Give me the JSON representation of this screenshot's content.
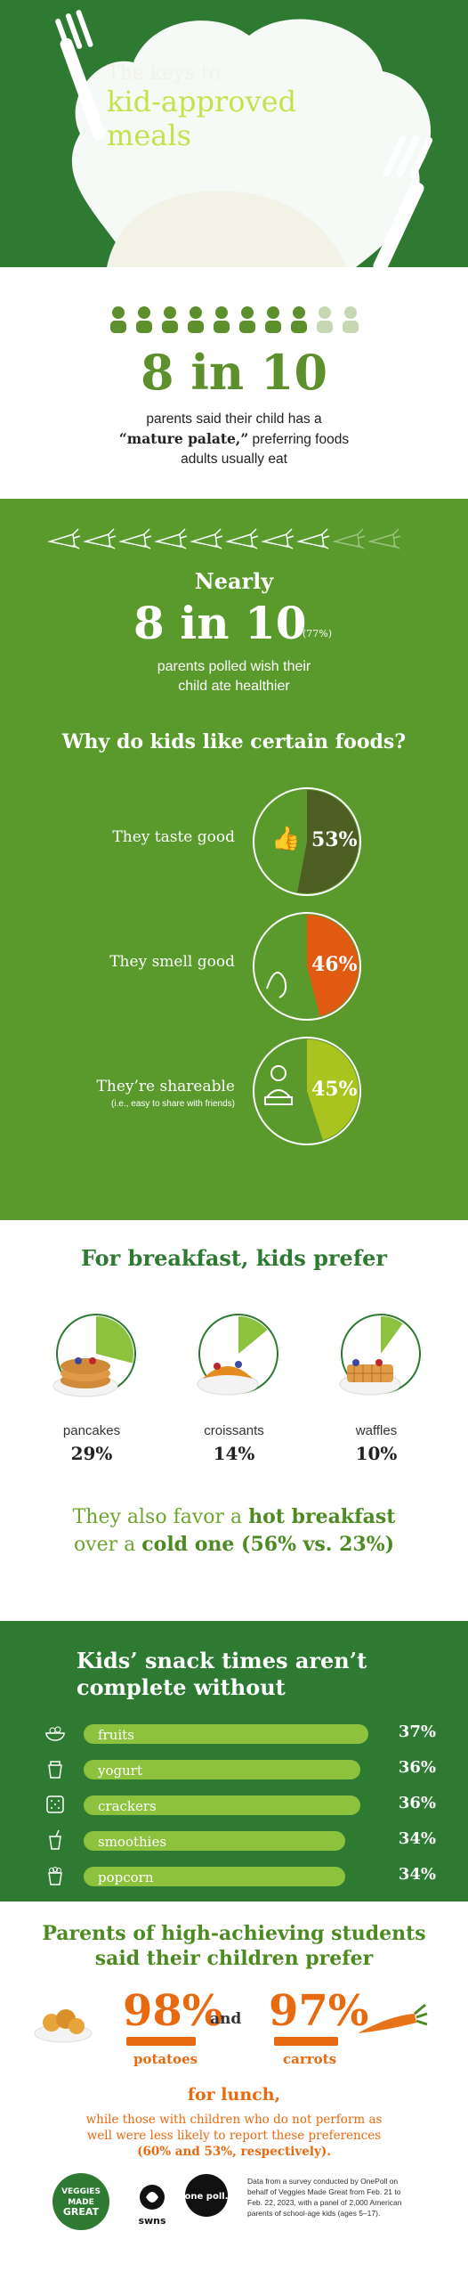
{
  "header": {
    "title_line1": "The keys to",
    "title_line2": "kid-approved",
    "title_line3": "meals"
  },
  "stat1": {
    "big": "8 in 10",
    "caption_line1": "parents said their child has a",
    "caption_bold": "“mature palate,”",
    "caption_line2_rest": " preferring foods",
    "caption_line3": "adults usually eat"
  },
  "stat2": {
    "nearly": "Nearly",
    "big": "8 in 10",
    "percent": "(77%)",
    "caption_line1": "parents polled wish their",
    "caption_line2": "child ate healthier"
  },
  "why": {
    "title": "Why do kids like certain foods?",
    "reasons": [
      {
        "label": "They taste good",
        "sub": "",
        "value": "53%",
        "fraction": 0.53,
        "color": "#4d5e22"
      },
      {
        "label": "They smell good",
        "sub": "",
        "value": "46%",
        "fraction": 0.46,
        "color": "#e05a12"
      },
      {
        "label": "They’re shareable",
        "sub": "(i.e., easy to share with friends)",
        "value": "45%",
        "fraction": 0.45,
        "color": "#a9c41e"
      }
    ]
  },
  "breakfast": {
    "title": "For breakfast, kids prefer",
    "items": [
      {
        "name": "pancakes",
        "value": "29%",
        "fraction": 0.29
      },
      {
        "name": "croissants",
        "value": "14%",
        "fraction": 0.14
      },
      {
        "name": "waffles",
        "value": "10%",
        "fraction": 0.1
      }
    ],
    "hot_line1_pre": "They also favor a ",
    "hot_line1_bold": "hot breakfast",
    "hot_line2_pre": "over a ",
    "hot_line2_bold": "cold one (56% vs. 23%)"
  },
  "snacks": {
    "title_line1": "Kids’ snack times aren’t",
    "title_line2": "complete without",
    "items": [
      {
        "name": "fruits",
        "value": "37%",
        "fraction": 0.37,
        "icon": "fruit-bowl-icon"
      },
      {
        "name": "yogurt",
        "value": "36%",
        "fraction": 0.36,
        "icon": "yogurt-cup-icon"
      },
      {
        "name": "crackers",
        "value": "36%",
        "fraction": 0.36,
        "icon": "cracker-icon"
      },
      {
        "name": "smoothies",
        "value": "34%",
        "fraction": 0.34,
        "icon": "smoothie-cup-icon"
      },
      {
        "name": "popcorn",
        "value": "34%",
        "fraction": 0.34,
        "icon": "popcorn-icon"
      }
    ]
  },
  "lunch": {
    "title_line1": "Parents of high-achieving students",
    "title_line2": "said their children prefer",
    "left_value": "98%",
    "left_food": "potatoes",
    "and": "and",
    "right_value": "97%",
    "right_food": "carrots",
    "for_lunch": "for lunch,",
    "while_line1": "while those with children who do not perform as",
    "while_line2": "well were less likely to report these preferences",
    "while_line3": "(60% and 53%, respectively)."
  },
  "footer": {
    "note_line1": "Data from a survey conducted by OnePoll on",
    "note_line2": "behalf of Veggies Made Great from Feb. 21 to",
    "note_line3": "Feb. 22, 2023, with a panel of 2,000 American",
    "note_line4": "parents of school-age kids (ages 5–17).",
    "logo1_l1": "VEGGIES",
    "logo1_l2": "MADE",
    "logo1_l3": "GREAT",
    "logo2": "swns",
    "logo3": "one poll."
  },
  "colors": {
    "dark_green": "#2e7a33",
    "mid_green": "#5a9a2c",
    "orange": "#e86a10",
    "lime": "#8dc23e"
  }
}
